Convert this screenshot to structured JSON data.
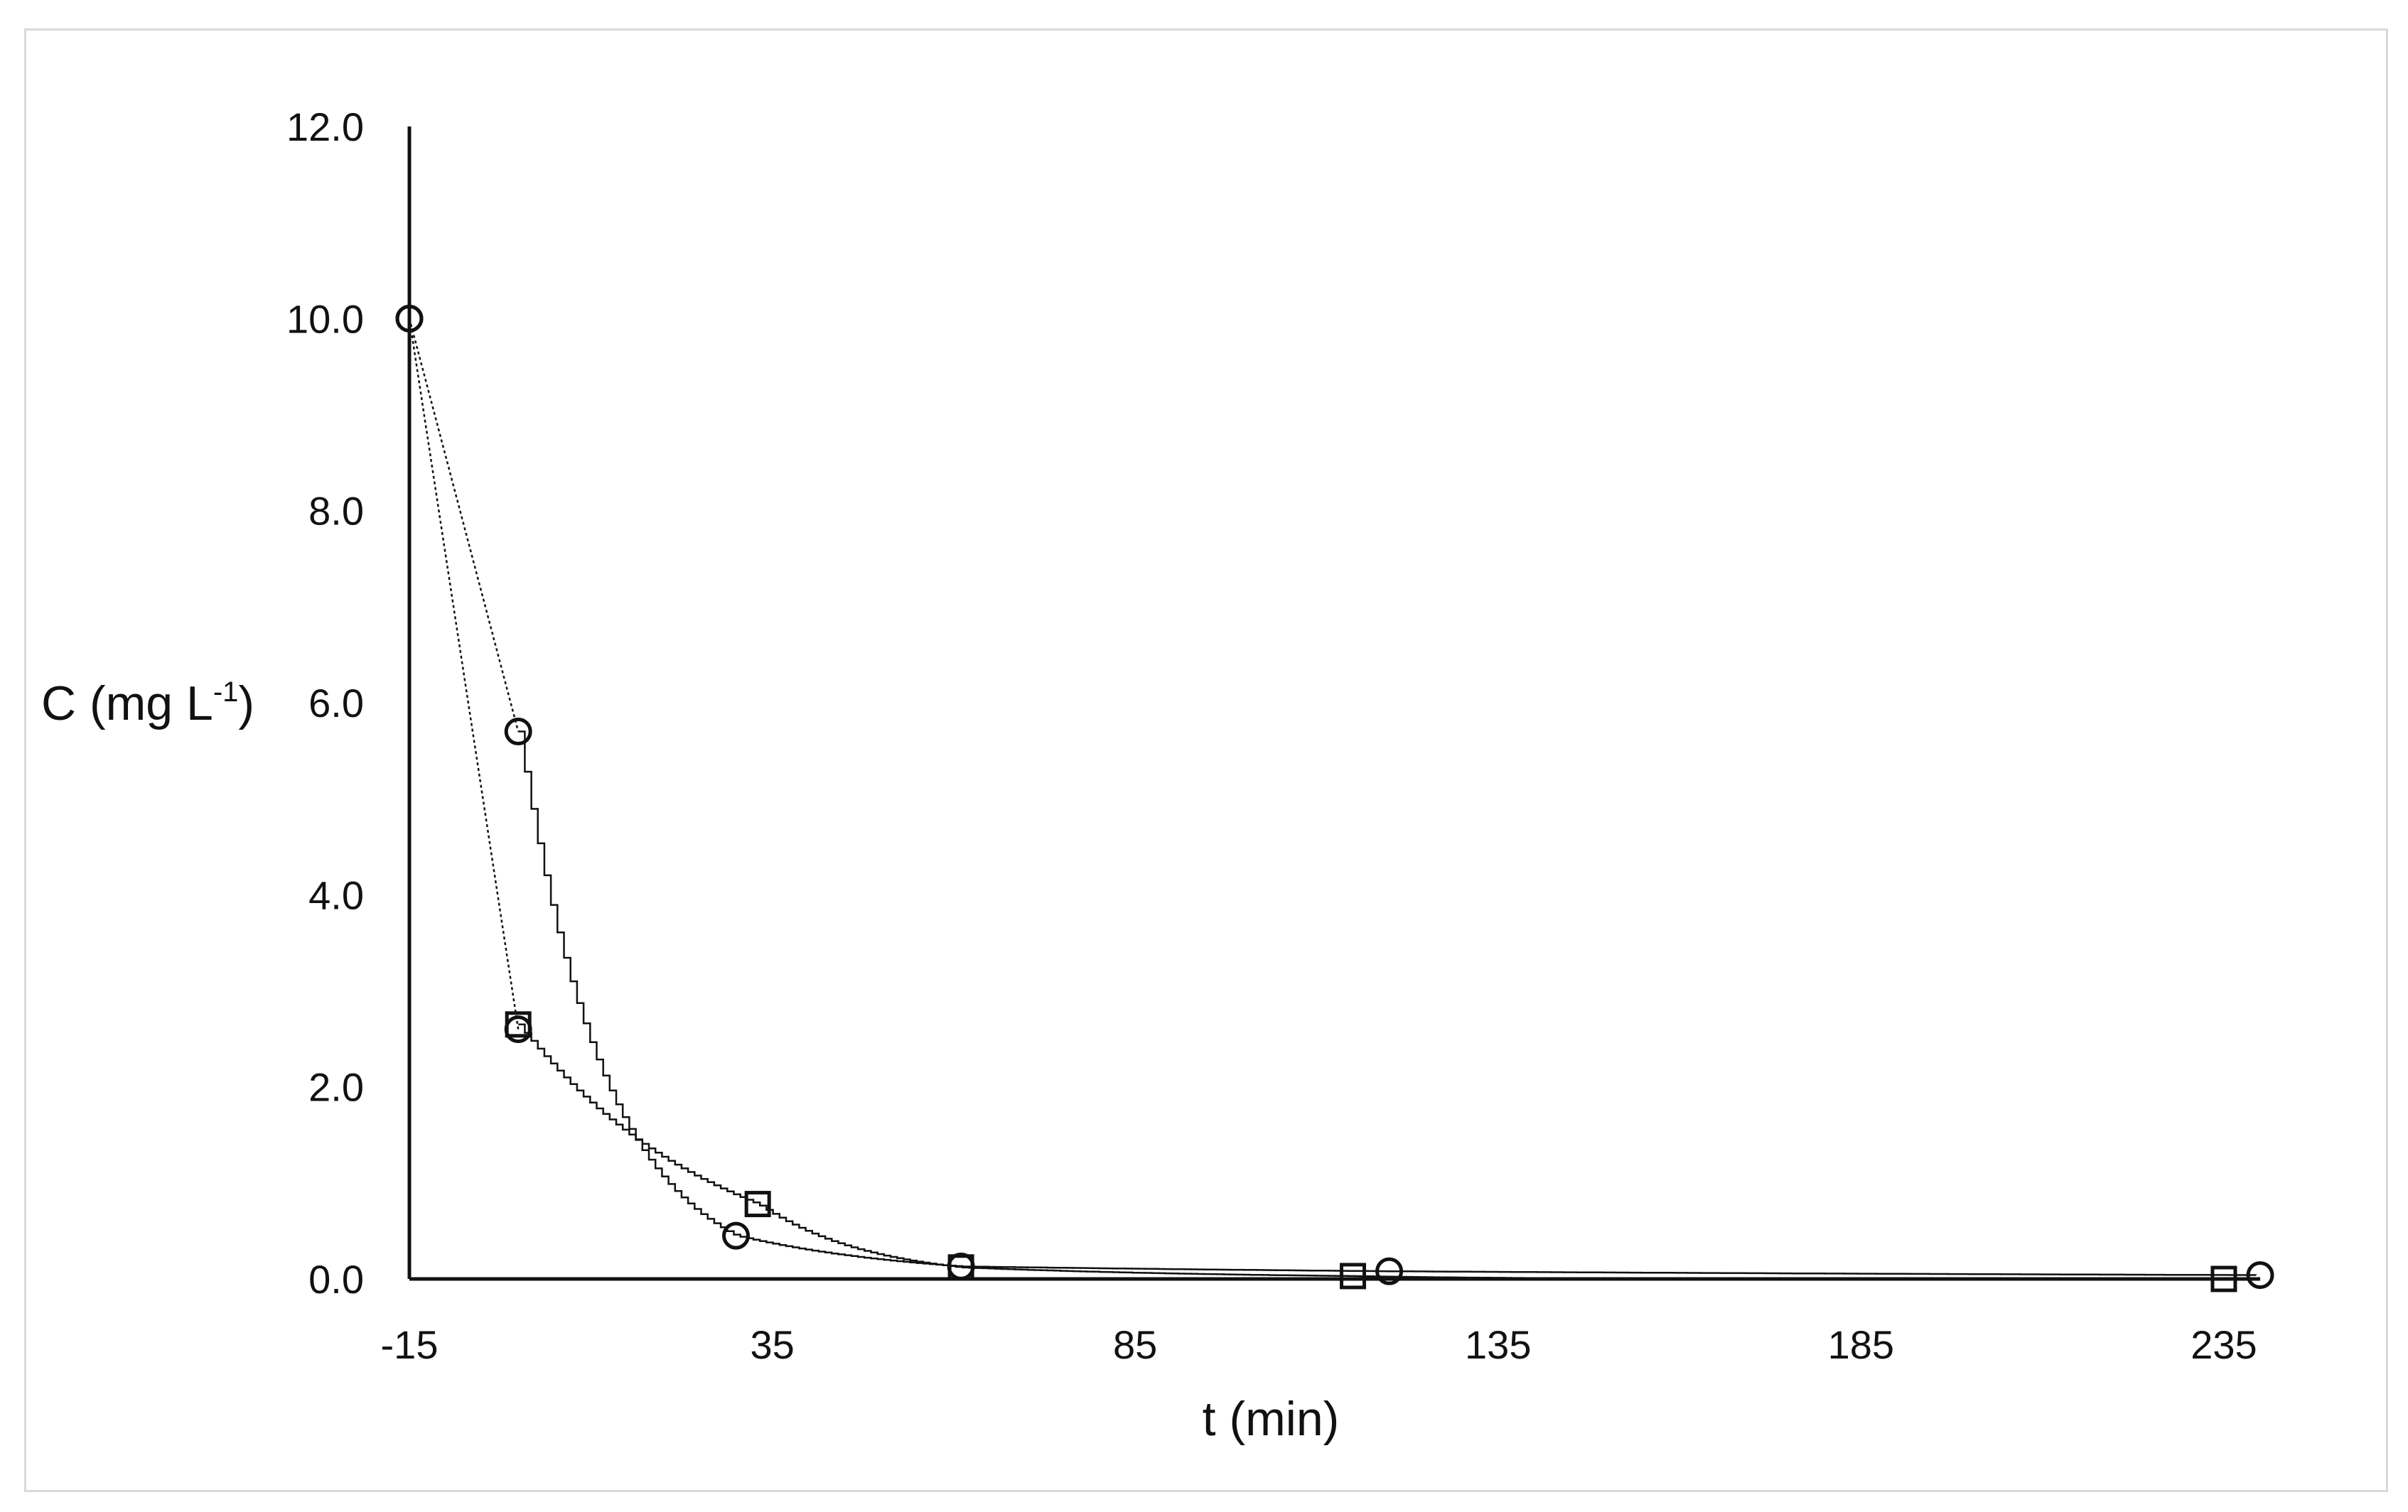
{
  "chart_data": {
    "type": "scatter",
    "title": "",
    "xlabel": "t (min)",
    "ylabel": {
      "main": "C (mg L",
      "sup": "-1",
      "close": ")"
    },
    "xlim": [
      -15,
      240
    ],
    "ylim": [
      0,
      12
    ],
    "x_ticks": [
      -15,
      35,
      85,
      135,
      185,
      235
    ],
    "y_ticks": [
      0.0,
      2.0,
      4.0,
      6.0,
      8.0,
      10.0,
      12.0
    ],
    "x_tick_labels": [
      "-15",
      "35",
      "85",
      "135",
      "185",
      "235"
    ],
    "y_tick_labels": [
      "0.0",
      "2.0",
      "4.0",
      "6.0",
      "8.0",
      "10.0",
      "12.0"
    ],
    "grid": false,
    "legend": "none",
    "series": [
      {
        "marker": "circle",
        "points": [
          {
            "x": -15,
            "y": 10.0
          },
          {
            "x": 0,
            "y": 5.7
          },
          {
            "x": 30,
            "y": 0.45
          },
          {
            "x": 61,
            "y": 0.13
          },
          {
            "x": 120,
            "y": 0.08
          },
          {
            "x": 240,
            "y": 0.04
          }
        ]
      },
      {
        "marker": "circle",
        "points": [
          {
            "x": -15,
            "y": 10.0
          },
          {
            "x": 0,
            "y": 2.6
          }
        ]
      },
      {
        "marker": "square",
        "points": [
          {
            "x": 0,
            "y": 2.65
          },
          {
            "x": 33,
            "y": 0.78
          },
          {
            "x": 61,
            "y": 0.12
          },
          {
            "x": 115,
            "y": 0.03
          },
          {
            "x": 235,
            "y": 0.0
          }
        ]
      }
    ]
  }
}
